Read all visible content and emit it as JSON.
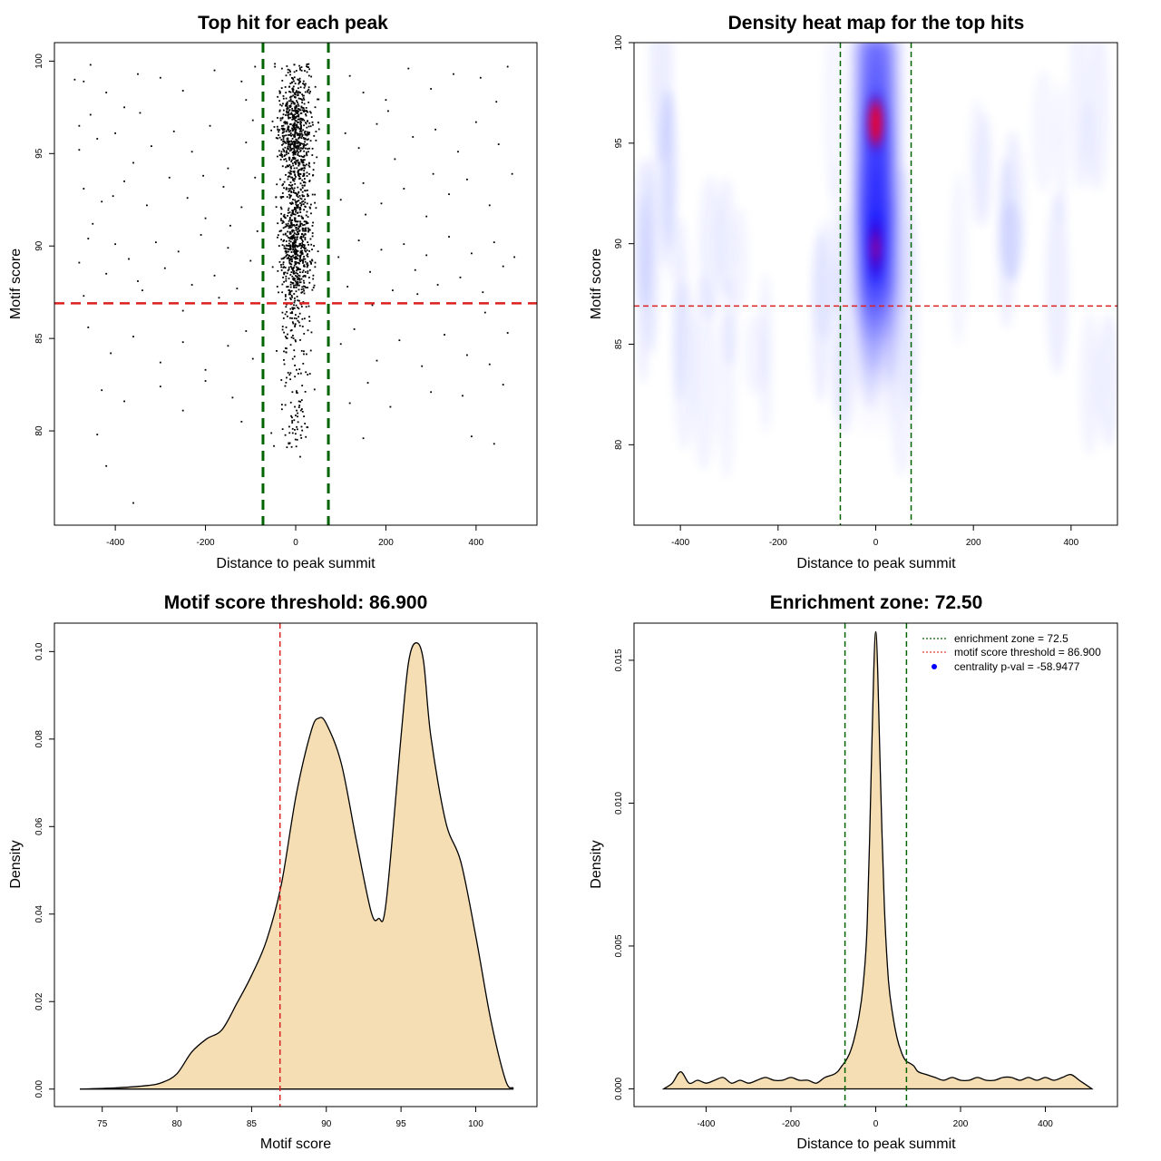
{
  "chart_data": [
    {
      "panel": "scatter",
      "type": "scatter",
      "title": "Top hit for each peak",
      "xlabel": "Distance to peak summit",
      "ylabel": "Motif score",
      "xlim": [
        -535,
        535
      ],
      "ylim": [
        74.9,
        101.0
      ],
      "xticks": [
        -400,
        -200,
        0,
        200,
        400
      ],
      "yticks": [
        80,
        85,
        90,
        95,
        100
      ],
      "xtick_labels": [
        "-400",
        "-200",
        "0",
        "200",
        "400"
      ],
      "ytick_labels": [
        "80",
        "85",
        "90",
        "95",
        "100"
      ],
      "enrichment_zone": 72.5,
      "score_threshold": 86.9,
      "points": [
        [
          -490,
          99
        ],
        [
          -470,
          98.9
        ],
        [
          -455,
          99.8
        ],
        [
          -420,
          98.3
        ],
        [
          -380,
          97.5
        ],
        [
          -350,
          99.3
        ],
        [
          -300,
          99.1
        ],
        [
          -250,
          98.4
        ],
        [
          -180,
          99.5
        ],
        [
          -120,
          98.9
        ],
        [
          -90,
          99.7
        ],
        [
          -110,
          97.9
        ],
        [
          120,
          99.2
        ],
        [
          150,
          98.3
        ],
        [
          200,
          97.9
        ],
        [
          250,
          99.6
        ],
        [
          300,
          98.5
        ],
        [
          350,
          99.3
        ],
        [
          410,
          99.1
        ],
        [
          470,
          99.7
        ],
        [
          -480,
          96.5
        ],
        [
          -440,
          95.8
        ],
        [
          -400,
          96.1
        ],
        [
          -360,
          94.5
        ],
        [
          -320,
          95.4
        ],
        [
          -270,
          96.2
        ],
        [
          -230,
          95.1
        ],
        [
          -190,
          96.5
        ],
        [
          -150,
          94.2
        ],
        [
          -110,
          95.6
        ],
        [
          -95,
          96.8
        ],
        [
          110,
          96.1
        ],
        [
          140,
          95.3
        ],
        [
          180,
          96.6
        ],
        [
          220,
          94.7
        ],
        [
          260,
          95.9
        ],
        [
          310,
          96.3
        ],
        [
          360,
          95.1
        ],
        [
          400,
          96.7
        ],
        [
          450,
          95.5
        ],
        [
          -470,
          93.1
        ],
        [
          -430,
          92.4
        ],
        [
          -380,
          93.5
        ],
        [
          -330,
          92.2
        ],
        [
          -280,
          93.7
        ],
        [
          -240,
          92.6
        ],
        [
          -200,
          91.5
        ],
        [
          -160,
          93.2
        ],
        [
          -120,
          92.1
        ],
        [
          -90,
          93.7
        ],
        [
          100,
          92.5
        ],
        [
          150,
          93.4
        ],
        [
          190,
          92.3
        ],
        [
          240,
          93.1
        ],
        [
          290,
          91.6
        ],
        [
          340,
          92.8
        ],
        [
          380,
          93.6
        ],
        [
          430,
          92.2
        ],
        [
          480,
          93.9
        ],
        [
          -450,
          91.2
        ],
        [
          -480,
          89.1
        ],
        [
          -460,
          90.4
        ],
        [
          -420,
          88.5
        ],
        [
          -400,
          90.1
        ],
        [
          -370,
          89.3
        ],
        [
          -340,
          87.6
        ],
        [
          -310,
          90.2
        ],
        [
          -290,
          88.8
        ],
        [
          -260,
          89.7
        ],
        [
          -230,
          87.9
        ],
        [
          -210,
          90.6
        ],
        [
          -180,
          88.4
        ],
        [
          -150,
          89.9
        ],
        [
          -130,
          87.7
        ],
        [
          -100,
          89.2
        ],
        [
          -85,
          90.8
        ],
        [
          95,
          89.4
        ],
        [
          115,
          87.8
        ],
        [
          140,
          90.3
        ],
        [
          165,
          88.6
        ],
        [
          190,
          89.8
        ],
        [
          215,
          87.6
        ],
        [
          240,
          90.1
        ],
        [
          265,
          88.7
        ],
        [
          290,
          89.5
        ],
        [
          315,
          87.9
        ],
        [
          340,
          90.5
        ],
        [
          365,
          88.3
        ],
        [
          390,
          89.6
        ],
        [
          415,
          87.5
        ],
        [
          440,
          90.2
        ],
        [
          460,
          88.9
        ],
        [
          485,
          89.4
        ],
        [
          -470,
          87.3
        ],
        [
          -350,
          88.1
        ],
        [
          -250,
          86.5
        ],
        [
          -170,
          87.2
        ],
        [
          170,
          86.8
        ],
        [
          270,
          87.4
        ],
        [
          420,
          86.4
        ],
        [
          -460,
          85.6
        ],
        [
          -410,
          84.2
        ],
        [
          -360,
          85.1
        ],
        [
          -300,
          83.7
        ],
        [
          -250,
          84.8
        ],
        [
          -200,
          83.3
        ],
        [
          -150,
          84.6
        ],
        [
          -110,
          85.4
        ],
        [
          -95,
          83.9
        ],
        [
          100,
          84.7
        ],
        [
          130,
          85.5
        ],
        [
          180,
          83.8
        ],
        [
          230,
          84.9
        ],
        [
          280,
          83.5
        ],
        [
          330,
          85.2
        ],
        [
          380,
          84.1
        ],
        [
          430,
          83.6
        ],
        [
          470,
          85.3
        ],
        [
          -430,
          82.2
        ],
        [
          -380,
          81.6
        ],
        [
          -300,
          82.4
        ],
        [
          -250,
          81.1
        ],
        [
          -200,
          82.7
        ],
        [
          -140,
          81.8
        ],
        [
          120,
          81.5
        ],
        [
          160,
          82.6
        ],
        [
          210,
          81.3
        ],
        [
          300,
          82.1
        ],
        [
          370,
          81.9
        ],
        [
          460,
          82.5
        ],
        [
          -440,
          79.8
        ],
        [
          -420,
          78.1
        ],
        [
          -360,
          76.1
        ],
        [
          -120,
          80.5
        ],
        [
          -15,
          79.3
        ],
        [
          10,
          78.6
        ],
        [
          25,
          80.2
        ],
        [
          150,
          79.6
        ],
        [
          390,
          79.7
        ],
        [
          440,
          79.3
        ],
        [
          -480,
          95.2
        ],
        [
          -455,
          97.1
        ],
        [
          -405,
          92.7
        ],
        [
          -345,
          97.2
        ],
        [
          -205,
          93.8
        ],
        [
          -145,
          91.1
        ],
        [
          155,
          91.7
        ],
        [
          205,
          97.3
        ],
        [
          305,
          93.9
        ],
        [
          445,
          97.8
        ]
      ],
      "central_cluster": {
        "x_sd": 18,
        "y_min": 79,
        "y_max": 99.9,
        "n": 1500
      }
    },
    {
      "panel": "heatmap",
      "type": "heatmap",
      "title": "Density heat map for the top hits",
      "xlabel": "Distance to peak summit",
      "ylabel": "Motif score",
      "xlim": [
        -495,
        495
      ],
      "ylim": [
        76.0,
        100.0
      ],
      "xticks": [
        -400,
        -200,
        0,
        200,
        400
      ],
      "yticks": [
        80,
        85,
        90,
        95,
        100
      ],
      "xtick_labels": [
        "-400",
        "-200",
        "0",
        "200",
        "400"
      ],
      "ytick_labels": [
        "80",
        "85",
        "90",
        "95",
        "100"
      ],
      "enrichment_zone": 72.5,
      "score_threshold": 86.9,
      "hot_spots": [
        {
          "x": 0,
          "y": 96.0,
          "intensity": "high"
        },
        {
          "x": 0,
          "y": 89.8,
          "intensity": "medium"
        }
      ]
    },
    {
      "panel": "score_density",
      "type": "area",
      "title": "Motif score threshold: 86.900",
      "xlabel": "Motif score",
      "ylabel": "Density",
      "xlim": [
        71.8,
        104.1
      ],
      "ylim": [
        -0.004,
        0.1065
      ],
      "xticks": [
        75,
        80,
        85,
        90,
        95,
        100
      ],
      "yticks": [
        0.0,
        0.02,
        0.04,
        0.06,
        0.08,
        0.1
      ],
      "xtick_labels": [
        "75",
        "80",
        "85",
        "90",
        "95",
        "100"
      ],
      "ytick_labels": [
        "0.00",
        "0.02",
        "0.04",
        "0.06",
        "0.08",
        "0.10"
      ],
      "threshold": 86.9,
      "x": [
        73.5,
        76,
        78,
        79,
        80,
        81,
        82,
        83,
        84,
        85,
        86,
        87,
        88,
        89,
        89.5,
        90,
        91,
        92,
        93,
        93.5,
        94,
        95,
        95.5,
        96,
        96.5,
        97,
        98,
        99,
        100,
        101,
        102,
        102.5
      ],
      "y": [
        0.0,
        0.0003,
        0.0008,
        0.0015,
        0.0035,
        0.0085,
        0.0115,
        0.0135,
        0.0195,
        0.026,
        0.034,
        0.047,
        0.0675,
        0.082,
        0.0848,
        0.0835,
        0.0745,
        0.057,
        0.0405,
        0.039,
        0.0425,
        0.0805,
        0.0975,
        0.102,
        0.098,
        0.0805,
        0.061,
        0.052,
        0.035,
        0.016,
        0.002,
        0.0003
      ]
    },
    {
      "panel": "distance_density",
      "type": "area",
      "title": "Enrichment zone: 72.50",
      "xlabel": "Distance to peak summit",
      "ylabel": "Density",
      "xlim": [
        -570,
        570
      ],
      "ylim": [
        -0.00062,
        0.0163
      ],
      "xticks": [
        -400,
        -200,
        0,
        200,
        400
      ],
      "yticks": [
        0.0,
        0.005,
        0.01,
        0.015
      ],
      "xtick_labels": [
        "-400",
        "-200",
        "0",
        "200",
        "400"
      ],
      "ytick_labels": [
        "0.000",
        "0.005",
        "0.010",
        "0.015"
      ],
      "enrichment_zone": 72.5,
      "x": [
        -500,
        -480,
        -460,
        -440,
        -420,
        -400,
        -380,
        -360,
        -340,
        -320,
        -300,
        -280,
        -260,
        -240,
        -220,
        -200,
        -180,
        -160,
        -140,
        -120,
        -100,
        -90,
        -80,
        -70,
        -60,
        -50,
        -40,
        -30,
        -20,
        -10,
        -5,
        0,
        5,
        10,
        20,
        30,
        40,
        50,
        60,
        70,
        80,
        90,
        100,
        120,
        140,
        160,
        180,
        200,
        220,
        240,
        260,
        280,
        300,
        320,
        340,
        360,
        380,
        400,
        420,
        440,
        460,
        480,
        500,
        510
      ],
      "y": [
        0.0,
        0.0002,
        0.0006,
        0.0002,
        0.0003,
        0.0002,
        0.0003,
        0.0004,
        0.0002,
        0.0003,
        0.0002,
        0.0003,
        0.0004,
        0.0003,
        0.0003,
        0.0004,
        0.0003,
        0.0003,
        0.0002,
        0.0004,
        0.0005,
        0.0006,
        0.0008,
        0.001,
        0.0013,
        0.0018,
        0.0025,
        0.0036,
        0.0058,
        0.0115,
        0.0145,
        0.016,
        0.0145,
        0.0115,
        0.0065,
        0.0038,
        0.0026,
        0.0018,
        0.0013,
        0.001,
        0.0009,
        0.0008,
        0.0006,
        0.0005,
        0.0004,
        0.0003,
        0.0004,
        0.0003,
        0.0003,
        0.0004,
        0.0003,
        0.0003,
        0.0004,
        0.0004,
        0.0003,
        0.0004,
        0.0003,
        0.0004,
        0.0003,
        0.0004,
        0.0005,
        0.0003,
        0.0001,
        0.0
      ]
    }
  ],
  "legend": {
    "placement": "top-right",
    "items": [
      {
        "label": "enrichment zone = 72.5",
        "color": "#006400",
        "style": "dotted-line"
      },
      {
        "label": "motif score threshold = 86.900",
        "color": "#e0403a",
        "style": "dotted-line"
      },
      {
        "label": "centrality p-val = -58.9477",
        "color": "#0000ff",
        "style": "point"
      }
    ]
  },
  "colors": {
    "threshold_line": "#dc2020",
    "zone_line": "#006400",
    "density_fill": "#f5deb3",
    "heat_low": "#ffffff",
    "heat_mid": "#0000ff",
    "heat_high": "#ff0000"
  }
}
